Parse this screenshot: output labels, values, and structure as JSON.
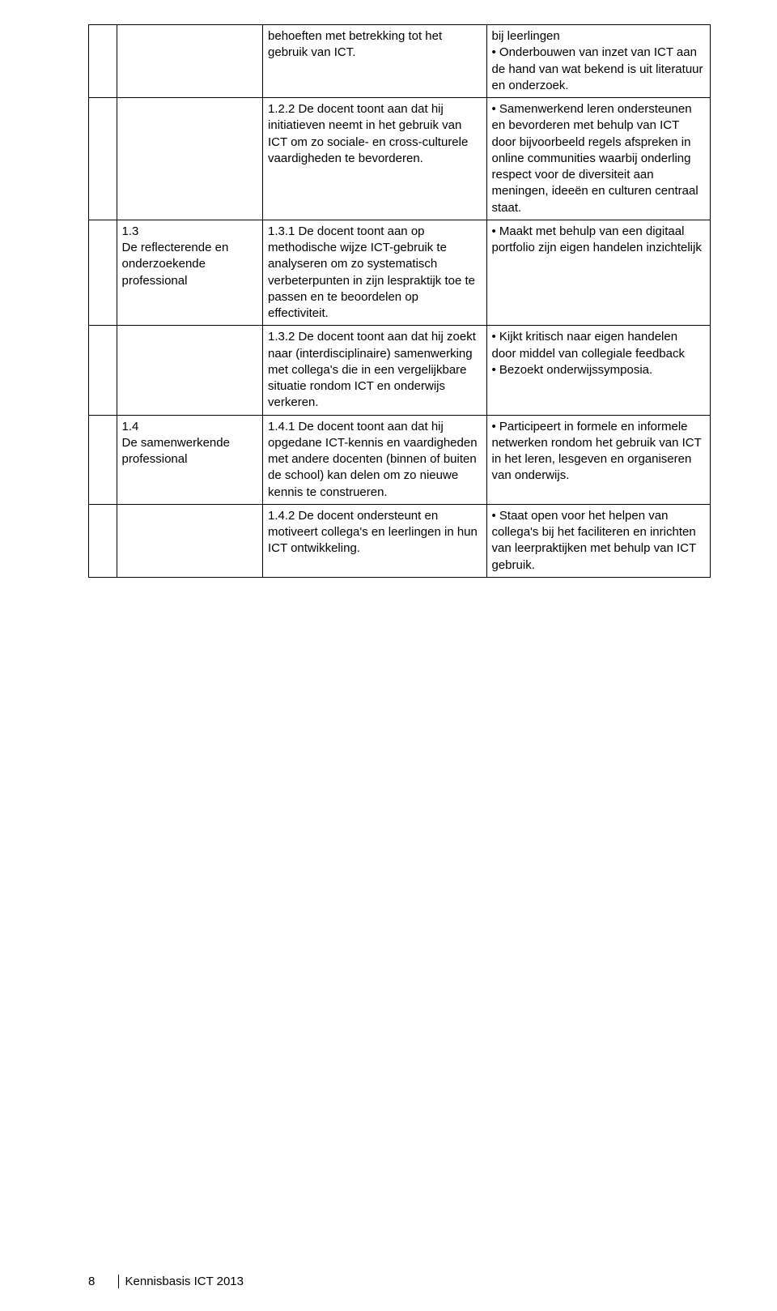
{
  "table": {
    "rows": [
      {
        "col1": "",
        "col2": "",
        "col3": "behoeften met betrekking tot het gebruik van ICT.",
        "col4": "bij leerlingen\n• Onderbouwen van inzet van ICT aan de hand van wat bekend is uit literatuur en onderzoek."
      },
      {
        "col1": "",
        "col2": "",
        "col3": "1.2.2 De docent toont aan dat hij initiatieven neemt in het gebruik van ICT om zo sociale- en cross-culturele vaardigheden te bevorderen.",
        "col4": "• Samenwerkend leren ondersteunen en bevorderen met behulp van ICT door bijvoorbeeld regels afspreken in online communities waarbij onderling respect voor de diversiteit aan meningen, ideeën en culturen centraal staat."
      },
      {
        "col1": "",
        "col2": "1.3\nDe reflecterende en onderzoekende professional",
        "col3": "1.3.1 De docent toont aan op methodische wijze ICT-gebruik te analyseren om zo systematisch verbeterpunten in zijn lespraktijk toe te passen en te beoordelen op effectiviteit.",
        "col4": "• Maakt met behulp van een digitaal portfolio zijn eigen handelen inzichtelijk"
      },
      {
        "col1": "",
        "col2": "",
        "col3": "1.3.2 De docent toont aan dat hij zoekt naar (interdisciplinaire) samenwerking met collega's die in een vergelijkbare situatie rondom ICT en onderwijs verkeren.",
        "col4": "• Kijkt kritisch naar eigen handelen door middel van collegiale feedback\n• Bezoekt onderwijssymposia."
      },
      {
        "col1": "",
        "col2": "1.4\nDe samenwerkende professional",
        "col3": "1.4.1 De docent toont aan dat hij opgedane ICT-kennis en vaardigheden met andere docenten (binnen of buiten de school) kan delen om zo nieuwe kennis te  construeren.",
        "col4": "• Participeert in formele en informele netwerken rondom het gebruik van ICT in het leren, lesgeven en organiseren van onderwijs."
      },
      {
        "col1": "",
        "col2": "",
        "col3": "1.4.2 De docent ondersteunt en motiveert collega's en leerlingen in hun ICT ontwikkeling.",
        "col4": "• Staat open voor het helpen van collega's bij het faciliteren en inrichten van leerpraktijken met behulp van ICT gebruik."
      }
    ]
  },
  "footer": {
    "page_number": "8",
    "doc_title": "Kennisbasis ICT 2013"
  }
}
